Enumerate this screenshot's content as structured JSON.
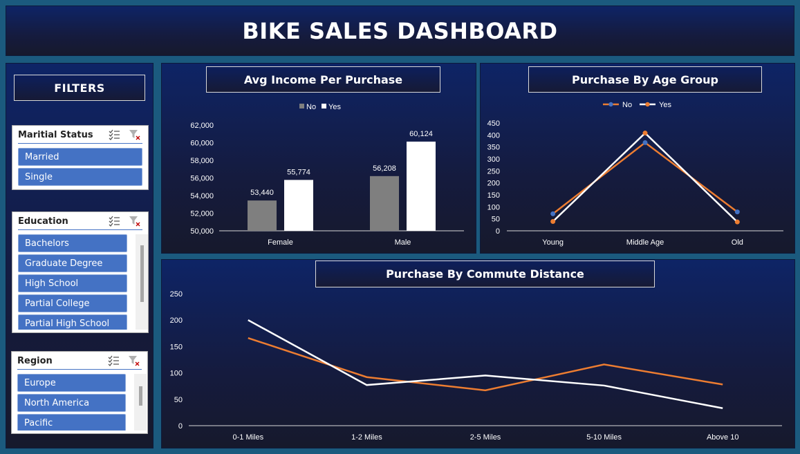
{
  "header": {
    "title": "BIKE SALES DASHBOARD"
  },
  "sidebar": {
    "title": "FILTERS",
    "slicers": [
      {
        "title": "Maritial Status",
        "items": [
          "Married",
          "Single"
        ]
      },
      {
        "title": "Education",
        "items": [
          "Bachelors",
          "Graduate Degree",
          "High School",
          "Partial College",
          "Partial High School"
        ]
      },
      {
        "title": "Region",
        "items": [
          "Europe",
          "North America",
          "Pacific"
        ]
      }
    ]
  },
  "colors": {
    "no": "#7f7f7f",
    "yes": "#ffffff",
    "line_no": "#ed7d31",
    "line_yes": "#ffffff",
    "marker_no": "#4472c4",
    "slicer_item": "#4472c4"
  },
  "chart_data": [
    {
      "type": "bar",
      "title": "Avg Income Per Purchase",
      "categories": [
        "Female",
        "Male"
      ],
      "series": [
        {
          "name": "No",
          "values": [
            53440,
            56208
          ],
          "labels": [
            "53,440",
            "56,208"
          ]
        },
        {
          "name": "Yes",
          "values": [
            55774,
            60124
          ],
          "labels": [
            "55,774",
            "60,124"
          ]
        }
      ],
      "ylim": [
        50000,
        62000
      ],
      "yticks": [
        "50,000",
        "52,000",
        "54,000",
        "56,000",
        "58,000",
        "60,000",
        "62,000"
      ],
      "legend": "top",
      "grid": false
    },
    {
      "type": "line",
      "title": "Purchase By Age Group",
      "categories": [
        "Young",
        "Middle Age",
        "Old"
      ],
      "series": [
        {
          "name": "No",
          "values": [
            71,
            368,
            79
          ]
        },
        {
          "name": "Yes",
          "values": [
            39,
            408,
            37
          ]
        }
      ],
      "ylim": [
        0,
        450
      ],
      "yticks": [
        "0",
        "50",
        "100",
        "150",
        "200",
        "250",
        "300",
        "350",
        "400",
        "450"
      ],
      "legend": "top",
      "grid": false
    },
    {
      "type": "line",
      "title": "Purchase By Commute Distance",
      "categories": [
        "0-1 Miles",
        "1-2 Miles",
        "2-5 Miles",
        "5-10 Miles",
        "Above 10"
      ],
      "series": [
        {
          "values": [
            166,
            92,
            67,
            116,
            78
          ]
        },
        {
          "values": [
            200,
            77,
            95,
            76,
            33
          ]
        }
      ],
      "ylim": [
        0,
        250
      ],
      "yticks": [
        "0",
        "50",
        "100",
        "150",
        "200",
        "250"
      ],
      "grid": false
    }
  ]
}
